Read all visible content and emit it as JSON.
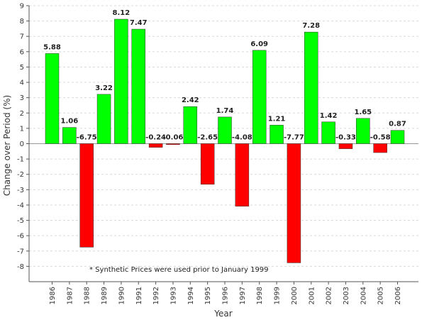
{
  "chart_data": {
    "type": "bar",
    "title": "",
    "xlabel": "Year",
    "ylabel": "Change over Period (%)",
    "categories": [
      "1986",
      "1987",
      "1988",
      "1989",
      "1990",
      "1991",
      "1992",
      "1993",
      "1994",
      "1995",
      "1996",
      "1997",
      "1998",
      "1999",
      "2000",
      "2001",
      "2002",
      "2003",
      "2004",
      "2005",
      "2006"
    ],
    "values": [
      5.88,
      1.06,
      -6.75,
      3.22,
      8.12,
      7.47,
      -0.24,
      -0.06,
      2.42,
      -2.65,
      1.74,
      -4.08,
      6.09,
      1.21,
      -7.77,
      7.28,
      1.42,
      -0.33,
      1.65,
      -0.58,
      0.87
    ],
    "data_labels": [
      "5.88",
      "1.06",
      "-6.75",
      "3.22",
      "8.12",
      "7.47",
      "-0.24",
      "-0.06",
      "2.42",
      "-2.65",
      "1.74",
      "-4.08",
      "6.09",
      "1.21",
      "-7.77",
      "7.28",
      "1.42",
      "-0.33",
      "1.65",
      "-0.58",
      "0.87"
    ],
    "yticks": [
      9,
      8,
      7,
      6,
      5,
      4,
      3,
      2,
      1,
      0,
      -1,
      -2,
      -3,
      -4,
      -5,
      -6,
      -7,
      -8
    ],
    "ylim": [
      -9,
      9
    ],
    "grid": true,
    "colors": {
      "positive": "#00ff00",
      "negative": "#ff0000",
      "grid": "#d9d9d9",
      "axis": "#555555"
    },
    "annotation": "* Synthetic Prices were used prior to January 1999"
  }
}
